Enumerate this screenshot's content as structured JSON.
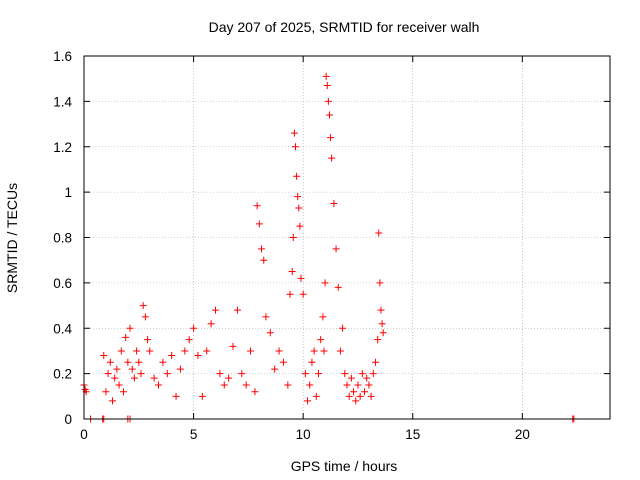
{
  "chart_data": {
    "type": "scatter",
    "title": "Day 207 of 2025, SRMTID for receiver walh",
    "xlabel": "GPS time / hours",
    "ylabel": "SRMTID / TECUs",
    "xlim": [
      0,
      24
    ],
    "ylim": [
      0,
      1.6
    ],
    "xticks": [
      0,
      5,
      10,
      15,
      20
    ],
    "yticks": [
      0,
      0.2,
      0.4,
      0.6,
      0.8,
      1,
      1.2,
      1.4,
      1.6
    ],
    "xtick_labels": [
      "0",
      "5",
      "10",
      "15",
      "20"
    ],
    "ytick_labels": [
      "0",
      "0.2",
      "0.4",
      "0.6",
      "0.8",
      "1",
      "1.2",
      "1.4",
      "1.6"
    ],
    "grid": true,
    "marker": "+",
    "marker_color": "#ff0000",
    "series": [
      {
        "name": "SRMTID",
        "color": "#ff0000",
        "x": [
          0.0,
          0.05,
          0.1,
          0.3,
          0.85,
          0.9,
          2.0,
          2.1,
          22.3,
          22.35,
          0.9,
          1.0,
          1.1,
          1.2,
          1.3,
          1.4,
          1.5,
          1.6,
          1.7,
          1.8,
          1.9,
          2.0,
          2.1,
          2.2,
          2.3,
          2.4,
          2.5,
          2.6,
          2.7,
          2.8,
          2.9,
          3.0,
          3.2,
          3.4,
          3.6,
          3.8,
          4.0,
          4.2,
          4.4,
          4.6,
          4.8,
          5.0,
          5.2,
          5.4,
          5.6,
          5.8,
          6.0,
          6.2,
          6.4,
          6.6,
          6.8,
          7.0,
          7.2,
          7.4,
          7.6,
          7.8,
          7.9,
          8.0,
          8.1,
          8.2,
          8.3,
          8.5,
          8.7,
          8.9,
          9.1,
          9.3,
          9.4,
          9.5,
          9.55,
          9.6,
          9.65,
          9.7,
          9.75,
          9.8,
          9.85,
          9.9,
          10.0,
          10.1,
          10.2,
          10.3,
          10.4,
          10.5,
          10.6,
          10.7,
          10.8,
          10.9,
          10.95,
          11.0,
          11.05,
          11.1,
          11.15,
          11.2,
          11.25,
          11.3,
          11.4,
          11.5,
          11.6,
          11.7,
          11.8,
          11.9,
          12.0,
          12.1,
          12.2,
          12.3,
          12.4,
          12.5,
          12.6,
          12.7,
          12.8,
          12.9,
          13.0,
          13.1,
          13.2,
          13.3,
          13.4,
          13.45,
          13.5,
          13.55,
          13.6,
          13.65
        ],
        "y": [
          0.15,
          0.13,
          0.12,
          0.0,
          0.0,
          0.0,
          0.0,
          0.0,
          0.0,
          0.0,
          0.28,
          0.12,
          0.2,
          0.25,
          0.08,
          0.18,
          0.22,
          0.15,
          0.3,
          0.12,
          0.36,
          0.25,
          0.4,
          0.22,
          0.18,
          0.3,
          0.25,
          0.2,
          0.5,
          0.45,
          0.35,
          0.3,
          0.18,
          0.15,
          0.25,
          0.2,
          0.28,
          0.1,
          0.22,
          0.3,
          0.35,
          0.4,
          0.28,
          0.1,
          0.3,
          0.42,
          0.48,
          0.2,
          0.15,
          0.18,
          0.32,
          0.48,
          0.2,
          0.15,
          0.3,
          0.12,
          0.94,
          0.86,
          0.75,
          0.7,
          0.45,
          0.38,
          0.22,
          0.3,
          0.25,
          0.15,
          0.55,
          0.65,
          0.8,
          1.26,
          1.2,
          1.07,
          0.98,
          0.93,
          0.85,
          0.62,
          0.55,
          0.2,
          0.08,
          0.15,
          0.25,
          0.3,
          0.1,
          0.2,
          0.35,
          0.45,
          0.3,
          0.6,
          1.51,
          1.47,
          1.4,
          1.34,
          1.24,
          1.15,
          0.95,
          0.75,
          0.58,
          0.3,
          0.4,
          0.2,
          0.15,
          0.1,
          0.18,
          0.12,
          0.08,
          0.15,
          0.1,
          0.2,
          0.12,
          0.18,
          0.15,
          0.1,
          0.2,
          0.25,
          0.35,
          0.82,
          0.6,
          0.48,
          0.42,
          0.38
        ]
      }
    ]
  }
}
